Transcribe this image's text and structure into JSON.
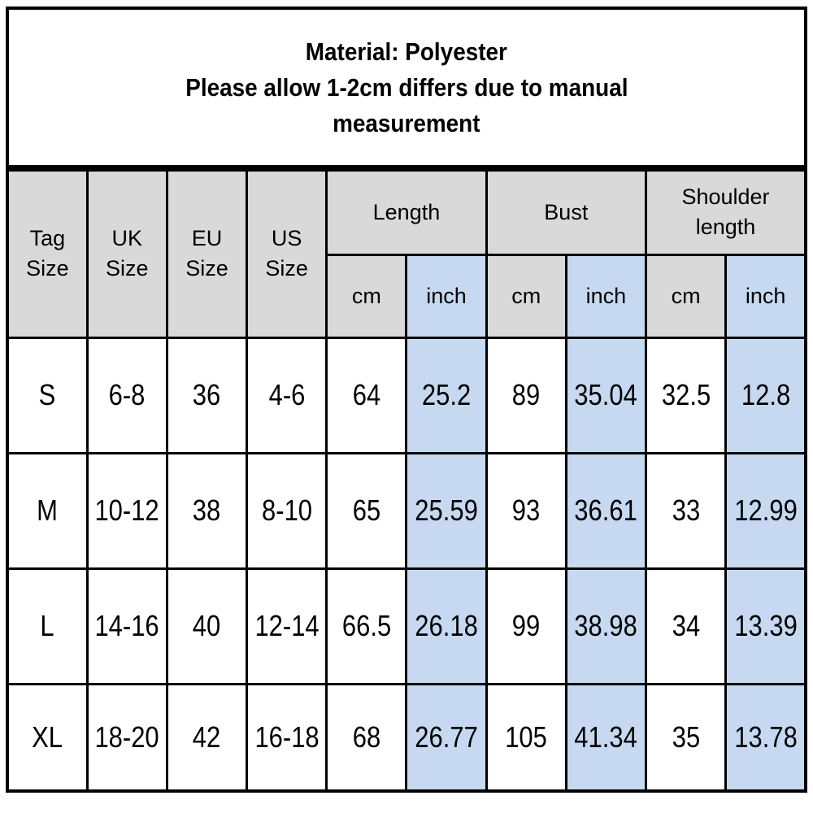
{
  "note": {
    "lines": [
      "Material: Polyester",
      "Please allow 1-2cm differs due to manual",
      "measurement"
    ]
  },
  "headers": {
    "simple": [
      {
        "line1": "Tag",
        "line2": "Size"
      },
      {
        "line1": "UK",
        "line2": "Size"
      },
      {
        "line1": "EU",
        "line2": "Size"
      },
      {
        "line1": "US",
        "line2": "Size"
      }
    ],
    "groups": [
      {
        "line1": "Length",
        "line2": ""
      },
      {
        "line1": "Bust",
        "line2": ""
      },
      {
        "line1": "Shoulder",
        "line2": "length"
      }
    ],
    "units": {
      "cm": "cm",
      "inch": "inch"
    }
  },
  "chart_data": {
    "type": "table",
    "title": "Material: Polyester Please allow 1-2cm differs due to manual measurement",
    "columns": [
      "Tag Size",
      "UK Size",
      "EU Size",
      "US Size",
      "Length cm",
      "Length inch",
      "Bust cm",
      "Bust inch",
      "Shoulder length cm",
      "Shoulder length inch"
    ],
    "rows": [
      [
        "S",
        "6-8",
        "36",
        "4-6",
        "64",
        "25.2",
        "89",
        "35.04",
        "32.5",
        "12.8"
      ],
      [
        "M",
        "10-12",
        "38",
        "8-10",
        "65",
        "25.59",
        "93",
        "36.61",
        "33",
        "12.99"
      ],
      [
        "L",
        "14-16",
        "40",
        "12-14",
        "66.5",
        "26.18",
        "99",
        "38.98",
        "34",
        "13.39"
      ],
      [
        "XL",
        "18-20",
        "42",
        "16-18",
        "68",
        "26.77",
        "105",
        "41.34",
        "35",
        "13.78"
      ]
    ]
  },
  "colors": {
    "header_bg": "#d9d9d9",
    "inch_col_bg": "#c6d9f1",
    "border": "#000000",
    "text": "#000000",
    "background": "#ffffff"
  }
}
